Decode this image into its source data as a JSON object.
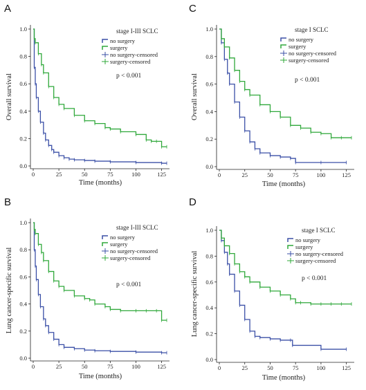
{
  "colors": {
    "no_surgery": "#3a4fa6",
    "surgery": "#2fa83a"
  },
  "chart_data": [
    {
      "panel": "A",
      "type": "line",
      "legend_title": "stage I-III SCLC",
      "legend": [
        "no surgery",
        "surgery",
        "no surgery-censored",
        "surgery-censored"
      ],
      "pvalue": "p < 0.001",
      "xlabel": "Time (months)",
      "ylabel": "Overall survival",
      "xlim": [
        0,
        130
      ],
      "ylim": [
        0,
        1.0
      ],
      "xticks": [
        0,
        25,
        50,
        75,
        100,
        125
      ],
      "yticks": [
        0.0,
        0.2,
        0.4,
        0.6,
        0.8,
        1.0
      ],
      "series": [
        {
          "name": "no surgery",
          "color_key": "no_surgery",
          "x": [
            0,
            1,
            2,
            3,
            5,
            7,
            10,
            12,
            15,
            18,
            20,
            25,
            30,
            35,
            40,
            50,
            60,
            75,
            100,
            125,
            130
          ],
          "y": [
            1.0,
            0.72,
            0.6,
            0.5,
            0.4,
            0.32,
            0.24,
            0.19,
            0.15,
            0.12,
            0.1,
            0.075,
            0.06,
            0.05,
            0.045,
            0.04,
            0.035,
            0.03,
            0.025,
            0.02,
            0.02
          ]
        },
        {
          "name": "surgery",
          "color_key": "surgery",
          "x": [
            0,
            1,
            2,
            5,
            8,
            10,
            15,
            20,
            25,
            30,
            40,
            50,
            60,
            70,
            75,
            85,
            100,
            110,
            115,
            120,
            125,
            130
          ],
          "y": [
            1.0,
            0.93,
            0.9,
            0.82,
            0.74,
            0.68,
            0.58,
            0.5,
            0.45,
            0.42,
            0.37,
            0.33,
            0.31,
            0.28,
            0.27,
            0.25,
            0.23,
            0.19,
            0.18,
            0.18,
            0.14,
            0.14
          ]
        }
      ]
    },
    {
      "panel": "B",
      "type": "line",
      "legend_title": "stage I-III SCLC",
      "legend": [
        "no surgery",
        "surgery",
        "no surgery-censored",
        "surgery-censored"
      ],
      "pvalue": "p < 0.001",
      "xlabel": "Time (months)",
      "ylabel": "Lung cancer-specific survival",
      "xlim": [
        0,
        130
      ],
      "ylim": [
        0,
        1.0
      ],
      "xticks": [
        0,
        25,
        50,
        75,
        100,
        125
      ],
      "yticks": [
        0.0,
        0.2,
        0.4,
        0.6,
        0.8,
        1.0
      ],
      "series": [
        {
          "name": "no surgery",
          "color_key": "no_surgery",
          "x": [
            0,
            1,
            2,
            3,
            5,
            7,
            10,
            12,
            15,
            20,
            25,
            30,
            40,
            50,
            60,
            75,
            100,
            125,
            130
          ],
          "y": [
            1.0,
            0.8,
            0.68,
            0.58,
            0.47,
            0.38,
            0.29,
            0.24,
            0.19,
            0.14,
            0.1,
            0.08,
            0.07,
            0.06,
            0.055,
            0.05,
            0.045,
            0.04,
            0.04
          ]
        },
        {
          "name": "surgery",
          "color_key": "surgery",
          "x": [
            0,
            1,
            2,
            5,
            8,
            10,
            15,
            20,
            25,
            30,
            40,
            50,
            55,
            60,
            70,
            75,
            85,
            100,
            110,
            120,
            125,
            130
          ],
          "y": [
            1.0,
            0.95,
            0.92,
            0.84,
            0.78,
            0.72,
            0.64,
            0.57,
            0.53,
            0.5,
            0.46,
            0.44,
            0.43,
            0.4,
            0.38,
            0.36,
            0.35,
            0.35,
            0.35,
            0.35,
            0.28,
            0.28
          ]
        }
      ]
    },
    {
      "panel": "C",
      "type": "line",
      "legend_title": "stage I SCLC",
      "legend": [
        "no surgery",
        "surgery",
        "no surgery-censored",
        "surgery-censored"
      ],
      "pvalue": "p < 0.001",
      "xlabel": "Time (months)",
      "ylabel": "Overall survival",
      "xlim": [
        0,
        130
      ],
      "ylim": [
        0,
        1.0
      ],
      "xticks": [
        0,
        25,
        50,
        75,
        100,
        125
      ],
      "yticks": [
        0.0,
        0.2,
        0.4,
        0.6,
        0.8,
        1.0
      ],
      "series": [
        {
          "name": "no surgery",
          "color_key": "no_surgery",
          "x": [
            0,
            2,
            5,
            8,
            10,
            15,
            20,
            25,
            30,
            35,
            40,
            50,
            60,
            70,
            75,
            100,
            125
          ],
          "y": [
            1.0,
            0.9,
            0.78,
            0.68,
            0.6,
            0.47,
            0.36,
            0.26,
            0.18,
            0.13,
            0.1,
            0.08,
            0.07,
            0.06,
            0.03,
            0.03,
            0.03
          ]
        },
        {
          "name": "surgery",
          "color_key": "surgery",
          "x": [
            0,
            2,
            5,
            10,
            15,
            20,
            25,
            30,
            40,
            50,
            60,
            70,
            80,
            90,
            100,
            110,
            120,
            130
          ],
          "y": [
            1.0,
            0.93,
            0.87,
            0.79,
            0.7,
            0.62,
            0.56,
            0.52,
            0.45,
            0.4,
            0.36,
            0.3,
            0.28,
            0.25,
            0.24,
            0.21,
            0.21,
            0.21
          ]
        }
      ]
    },
    {
      "panel": "D",
      "type": "line",
      "legend_title": "stage I SCLC",
      "legend": [
        "no surgery",
        "surgery",
        "no surgery-censored",
        "surgery-censored"
      ],
      "pvalue": "p < 0.001",
      "xlabel": "Time (months)",
      "ylabel": "Lung cancer-specific survival",
      "xlim": [
        0,
        130
      ],
      "ylim": [
        0,
        1.0
      ],
      "xticks": [
        0,
        25,
        50,
        75,
        100,
        125
      ],
      "yticks": [
        0.0,
        0.2,
        0.4,
        0.6,
        0.8,
        1.0
      ],
      "series": [
        {
          "name": "no surgery",
          "color_key": "no_surgery",
          "x": [
            0,
            2,
            5,
            8,
            10,
            15,
            20,
            25,
            30,
            35,
            40,
            50,
            60,
            70,
            72,
            100,
            125
          ],
          "y": [
            1.0,
            0.92,
            0.83,
            0.74,
            0.66,
            0.53,
            0.42,
            0.31,
            0.22,
            0.18,
            0.17,
            0.16,
            0.15,
            0.15,
            0.11,
            0.08,
            0.08
          ]
        },
        {
          "name": "surgery",
          "color_key": "surgery",
          "x": [
            0,
            2,
            5,
            10,
            15,
            20,
            25,
            30,
            40,
            50,
            60,
            70,
            75,
            80,
            90,
            100,
            110,
            120,
            130
          ],
          "y": [
            1.0,
            0.94,
            0.88,
            0.82,
            0.74,
            0.68,
            0.64,
            0.6,
            0.56,
            0.53,
            0.5,
            0.47,
            0.44,
            0.44,
            0.43,
            0.43,
            0.43,
            0.43,
            0.43
          ]
        }
      ]
    }
  ]
}
